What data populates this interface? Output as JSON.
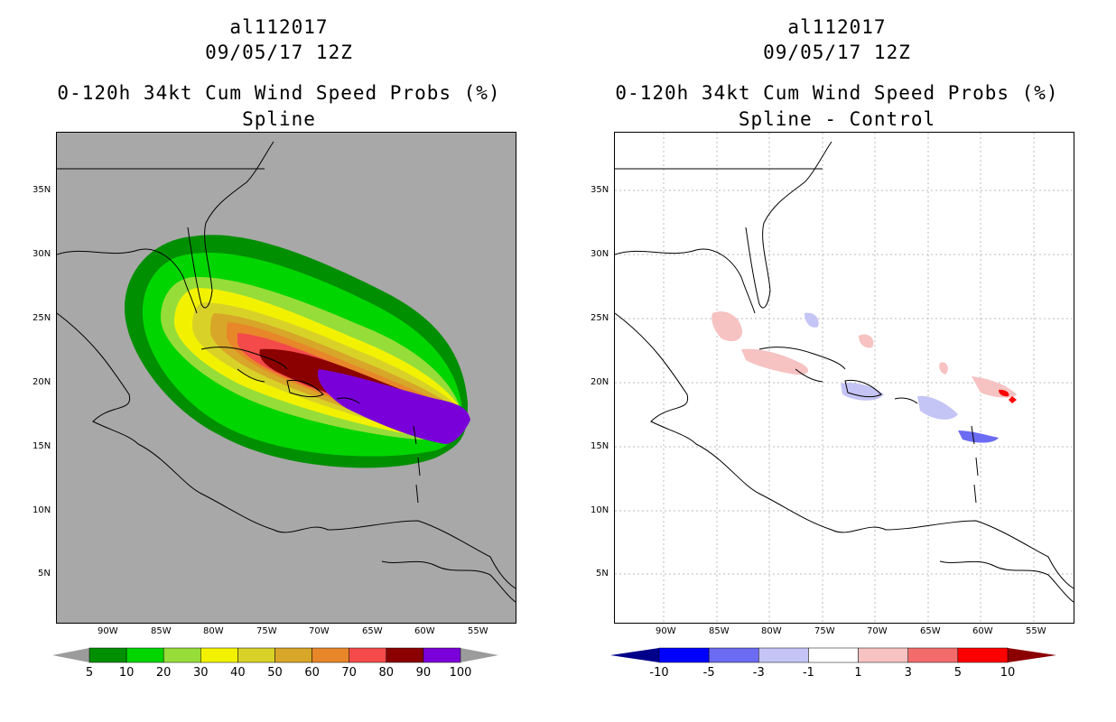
{
  "left": {
    "title1": "al112017",
    "title2": "09/05/17 12Z",
    "title3": "0-120h 34kt Cum Wind Speed Probs (%)",
    "title4": "Spline",
    "colorbar": {
      "labels": [
        "5",
        "10",
        "20",
        "30",
        "40",
        "50",
        "60",
        "70",
        "80",
        "90",
        "100"
      ],
      "colors": [
        "#008f00",
        "#00d500",
        "#96dd3a",
        "#f2f200",
        "#d8d228",
        "#d8a628",
        "#e8862a",
        "#f44a4a",
        "#8b0000",
        "#7a00d9"
      ],
      "end_color": "#9b9b9b"
    }
  },
  "right": {
    "title1": "al112017",
    "title2": "09/05/17 12Z",
    "title3": "0-120h 34kt Cum Wind Speed Probs (%)",
    "title4": "Spline - Control",
    "colorbar": {
      "labels": [
        "-10",
        "-5",
        "-3",
        "-1",
        "1",
        "3",
        "5",
        "10"
      ],
      "colors": [
        "#0000ff",
        "#6b6bf3",
        "#c4c4f5",
        "#ffffff",
        "#f6c2c2",
        "#f36b6b",
        "#ff0000"
      ],
      "end_low": "#00008b",
      "end_high": "#8b0000"
    }
  },
  "axes": {
    "lat_labels": [
      "35N",
      "30N",
      "25N",
      "20N",
      "15N",
      "10N",
      "5N"
    ],
    "lon_labels": [
      "90W",
      "85W",
      "80W",
      "75W",
      "70W",
      "65W",
      "60W",
      "55W"
    ]
  }
}
